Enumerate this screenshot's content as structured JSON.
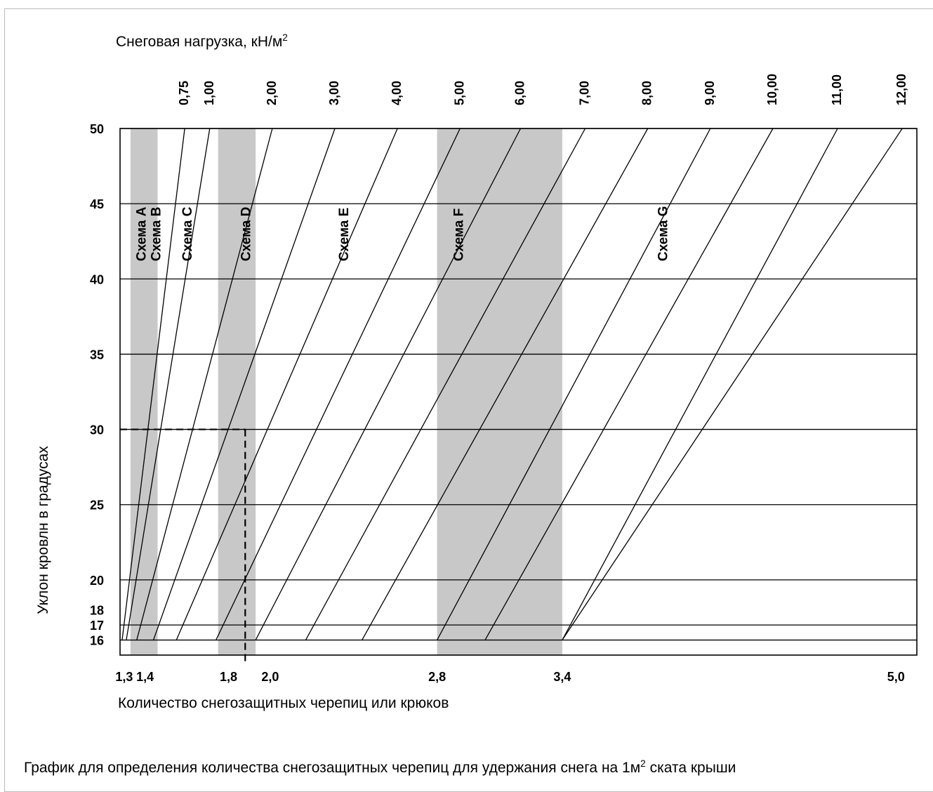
{
  "chart_data": {
    "type": "line",
    "top_axis_title": "Снеговая нагрузка, кН/м",
    "top_axis_title_sup": "2",
    "xlabel": "Количество снегозащитных черепиц или крюков",
    "ylabel": "Уклон кровлн в градусах",
    "caption_pre": "График для определения количества снегозащитных черепиц для удержания снега на 1м",
    "caption_sup": "2",
    "caption_post": " ската крыши",
    "ylim": [
      15,
      50
    ],
    "xlim": [
      1.28,
      5.1
    ],
    "y_ticks": [
      "16",
      "17",
      "18",
      "20",
      "25",
      "30",
      "35",
      "40",
      "45",
      "50"
    ],
    "y_tick_values": [
      16,
      17,
      18,
      20,
      25,
      30,
      35,
      40,
      45,
      50
    ],
    "horizontal_gridlines": [
      16,
      17,
      20,
      25,
      30,
      35,
      40,
      45,
      50
    ],
    "x_tick_labels": [
      {
        "label": "1,3",
        "value": 1.3
      },
      {
        "label": "1,4",
        "value": 1.4
      },
      {
        "label": "1,8",
        "value": 1.8
      },
      {
        "label": "2,0",
        "value": 2.0
      },
      {
        "label": "2,8",
        "value": 2.8
      },
      {
        "label": "3,4",
        "value": 3.4
      },
      {
        "label": "5,0",
        "value": 5.0
      }
    ],
    "shaded_bands": [
      {
        "x": [
          1.33,
          1.46
        ]
      },
      {
        "x": [
          1.75,
          1.93
        ]
      },
      {
        "x": [
          2.8,
          3.4
        ]
      }
    ],
    "series": [
      {
        "name": "0,75",
        "points": [
          [
            1.29,
            16
          ],
          [
            1.59,
            50
          ]
        ]
      },
      {
        "name": "1,00",
        "points": [
          [
            1.31,
            16
          ],
          [
            1.71,
            50
          ]
        ]
      },
      {
        "name": "2,00",
        "points": [
          [
            1.36,
            16
          ],
          [
            2.01,
            50
          ]
        ]
      },
      {
        "name": "3,00",
        "points": [
          [
            1.44,
            16
          ],
          [
            2.31,
            50
          ]
        ]
      },
      {
        "name": "4,00",
        "points": [
          [
            1.55,
            16
          ],
          [
            2.61,
            50
          ]
        ]
      },
      {
        "name": "5,00",
        "points": [
          [
            1.74,
            16
          ],
          [
            2.91,
            50
          ]
        ]
      },
      {
        "name": "6,00",
        "points": [
          [
            1.93,
            16
          ],
          [
            3.2,
            50
          ]
        ]
      },
      {
        "name": "7,00",
        "points": [
          [
            2.17,
            16
          ],
          [
            3.51,
            50
          ]
        ]
      },
      {
        "name": "8,00",
        "points": [
          [
            2.44,
            16
          ],
          [
            3.81,
            50
          ]
        ]
      },
      {
        "name": "9,00",
        "points": [
          [
            2.8,
            16
          ],
          [
            4.11,
            50
          ]
        ]
      },
      {
        "name": "10,00",
        "points": [
          [
            3.03,
            16
          ],
          [
            4.41,
            50
          ]
        ]
      },
      {
        "name": "11,00",
        "points": [
          [
            3.4,
            16
          ],
          [
            4.72,
            50
          ]
        ]
      },
      {
        "name": "12,00",
        "points": [
          [
            3.4,
            16
          ],
          [
            5.03,
            50
          ]
        ]
      }
    ],
    "scheme_labels": [
      {
        "label": "Схема A",
        "x": 1.38
      },
      {
        "label": "Схема B",
        "x": 1.45
      },
      {
        "label": "Схема C",
        "x": 1.6
      },
      {
        "label": "Схема D",
        "x": 1.88
      },
      {
        "label": "Схема E",
        "x": 2.35
      },
      {
        "label": "Схема F",
        "x": 2.9
      },
      {
        "label": "Схема G",
        "x": 3.88
      }
    ],
    "example": {
      "x": 1.88,
      "y": 30
    },
    "colors": {
      "band": "#c8c8c8",
      "line": "#000000"
    }
  }
}
